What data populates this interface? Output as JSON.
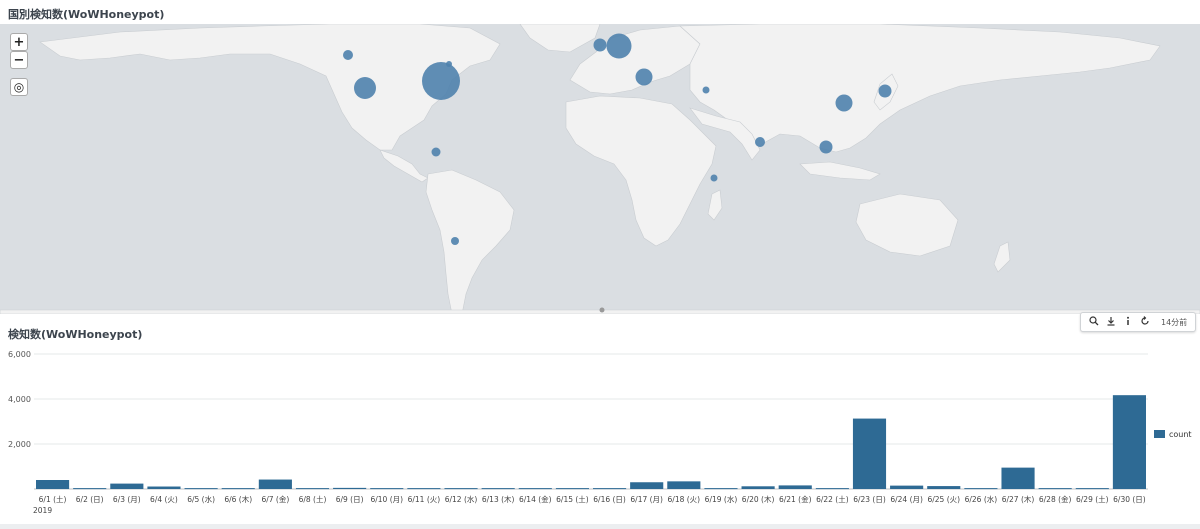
{
  "map_panel": {
    "title": "国別検知数(WoWHoneypot)",
    "zoom_in_label": "+",
    "zoom_out_label": "−",
    "locate_label": "◎",
    "bubble_color": "#4f82ad",
    "land_color": "#f2f2f2",
    "water_color": "#dadee2"
  },
  "chart_panel": {
    "title": "検知数(WoWHoneypot)",
    "toolbar": {
      "search_icon": "search-icon",
      "download_icon": "download-icon",
      "info_icon": "info-icon",
      "refresh_icon": "refresh-icon",
      "time_ago": "14分前"
    }
  },
  "chart_data": {
    "type": "bar",
    "categories": [
      "6/1 (土)",
      "6/2 (日)",
      "6/3 (月)",
      "6/4 (火)",
      "6/5 (水)",
      "6/6 (木)",
      "6/7 (金)",
      "6/8 (土)",
      "6/9 (日)",
      "6/10 (月)",
      "6/11 (火)",
      "6/12 (水)",
      "6/13 (木)",
      "6/14 (金)",
      "6/15 (土)",
      "6/16 (日)",
      "6/17 (月)",
      "6/18 (火)",
      "6/19 (水)",
      "6/20 (木)",
      "6/21 (金)",
      "6/22 (土)",
      "6/23 (日)",
      "6/24 (月)",
      "6/25 (火)",
      "6/26 (水)",
      "6/27 (木)",
      "6/28 (金)",
      "6/29 (土)",
      "6/30 (日)"
    ],
    "first_tick_year": "2019",
    "series": [
      {
        "name": "count",
        "color": "#2e6a94",
        "values": [
          400,
          40,
          240,
          110,
          40,
          40,
          420,
          40,
          50,
          40,
          40,
          40,
          40,
          40,
          40,
          40,
          300,
          340,
          40,
          120,
          160,
          40,
          3130,
          150,
          130,
          40,
          950,
          40,
          40,
          4170
        ]
      }
    ],
    "ylim": [
      0,
      6000
    ],
    "y_ticks": [
      "6,000",
      "4,000",
      "2,000"
    ],
    "y_tick_values": [
      6000,
      4000,
      2000
    ],
    "legend": "right",
    "grid": true
  }
}
